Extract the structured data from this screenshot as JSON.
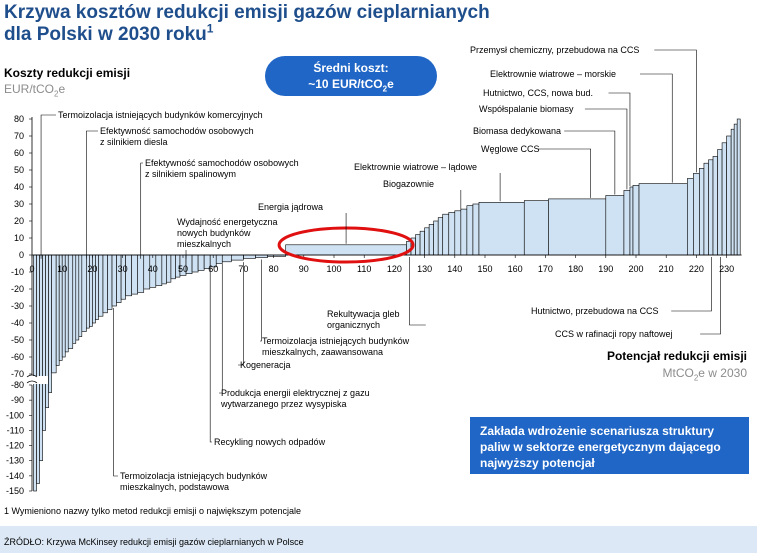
{
  "title_line1": "Krzywa kosztów redukcji emisji gazów cieplarnianych",
  "title_line2": "dla Polski w 2030 roku",
  "title_sup": "1",
  "y_axis_title": "Koszty redukcji emisji",
  "y_axis_unit_pre": "EUR/tCO",
  "y_axis_unit_sub": "2",
  "y_axis_unit_post": "e",
  "x_axis_title": "Potencjał redukcji emisji",
  "x_axis_unit_pre": "MtCO",
  "x_axis_unit_sub": "2",
  "x_axis_unit_post": "e w 2030",
  "avg_cost_line1": "Średni koszt:",
  "avg_cost_line2_pre": "~10 EUR/tCO",
  "avg_cost_line2_sub": "2",
  "avg_cost_line2_post": "e",
  "info_box": "Zakłada wdrożenie scenariusza struktury paliw w sektorze energetycznym dającego najwyższy potencjał",
  "footnote": "1 Wymieniono nazwy tylko metod redukcji emisji o największym potencjale",
  "source": "ŹRÓDŁO: Krzywa McKinsey redukcji emisji gazów cieplarnianych w Polsce",
  "colors": {
    "bar_fill": "#cfe2f3",
    "bar_stroke": "#000000",
    "title": "#1f4e8c",
    "box": "#1f66c6",
    "oval": "#e01010"
  },
  "chart_data": {
    "type": "bar",
    "variant": "marginal-abatement-cost-curve",
    "xlim": [
      0,
      235
    ],
    "ylim": [
      -150,
      80
    ],
    "axis_break": "between -70 and -80",
    "x_ticks": [
      0,
      10,
      20,
      30,
      40,
      50,
      60,
      70,
      80,
      90,
      100,
      110,
      120,
      130,
      140,
      150,
      160,
      170,
      180,
      190,
      200,
      210,
      220,
      230
    ],
    "y_ticks": [
      80,
      70,
      60,
      50,
      40,
      30,
      20,
      10,
      0,
      -10,
      -20,
      -30,
      -40,
      -50,
      -60,
      -70,
      -80,
      -90,
      -100,
      -110,
      -120,
      -130,
      -140,
      -150
    ],
    "bars": [
      {
        "x0": 0.5,
        "x1": 1.5,
        "y": -150
      },
      {
        "x0": 1.5,
        "x1": 2.5,
        "y": -145
      },
      {
        "x0": 2.5,
        "x1": 3.5,
        "y": -130
      },
      {
        "x0": 3.5,
        "x1": 4.5,
        "y": -110
      },
      {
        "x0": 4.5,
        "x1": 5.5,
        "y": -95
      },
      {
        "x0": 5.5,
        "x1": 6.5,
        "y": -85
      },
      {
        "x0": 6.5,
        "x1": 8,
        "y": -72
      },
      {
        "x0": 8,
        "x1": 9,
        "y": -65
      },
      {
        "x0": 9,
        "x1": 10,
        "y": -62
      },
      {
        "x0": 10,
        "x1": 11,
        "y": -60
      },
      {
        "x0": 11,
        "x1": 12,
        "y": -57
      },
      {
        "x0": 12,
        "x1": 13.5,
        "y": -55
      },
      {
        "x0": 13.5,
        "x1": 14.5,
        "y": -52
      },
      {
        "x0": 14.5,
        "x1": 15.5,
        "y": -50
      },
      {
        "x0": 15.5,
        "x1": 16.5,
        "y": -48
      },
      {
        "x0": 16.5,
        "x1": 18,
        "y": -45
      },
      {
        "x0": 18,
        "x1": 19,
        "y": -43
      },
      {
        "x0": 19,
        "x1": 20,
        "y": -42
      },
      {
        "x0": 20,
        "x1": 21,
        "y": -40
      },
      {
        "x0": 21,
        "x1": 22,
        "y": -38
      },
      {
        "x0": 22,
        "x1": 23.5,
        "y": -36
      },
      {
        "x0": 23.5,
        "x1": 25,
        "y": -34
      },
      {
        "x0": 25,
        "x1": 26.5,
        "y": -32
      },
      {
        "x0": 26.5,
        "x1": 28,
        "y": -30
      },
      {
        "x0": 28,
        "x1": 29.5,
        "y": -28
      },
      {
        "x0": 29.5,
        "x1": 31,
        "y": -26
      },
      {
        "x0": 31,
        "x1": 33,
        "y": -24
      },
      {
        "x0": 33,
        "x1": 35,
        "y": -23
      },
      {
        "x0": 35,
        "x1": 37,
        "y": -22
      },
      {
        "x0": 37,
        "x1": 39,
        "y": -20
      },
      {
        "x0": 39,
        "x1": 41,
        "y": -19
      },
      {
        "x0": 41,
        "x1": 43,
        "y": -18
      },
      {
        "x0": 43,
        "x1": 44.5,
        "y": -17
      },
      {
        "x0": 44.5,
        "x1": 46,
        "y": -16
      },
      {
        "x0": 46,
        "x1": 47.5,
        "y": -14
      },
      {
        "x0": 47.5,
        "x1": 49,
        "y": -13
      },
      {
        "x0": 49,
        "x1": 51,
        "y": -12
      },
      {
        "x0": 51,
        "x1": 53,
        "y": -11
      },
      {
        "x0": 53,
        "x1": 55,
        "y": -10
      },
      {
        "x0": 55,
        "x1": 57,
        "y": -9
      },
      {
        "x0": 57,
        "x1": 59,
        "y": -8
      },
      {
        "x0": 59,
        "x1": 61,
        "y": -7
      },
      {
        "x0": 61,
        "x1": 63,
        "y": -5
      },
      {
        "x0": 63,
        "x1": 66,
        "y": -4
      },
      {
        "x0": 66,
        "x1": 70,
        "y": -3
      },
      {
        "x0": 70,
        "x1": 74,
        "y": -2
      },
      {
        "x0": 74,
        "x1": 78,
        "y": -1.5
      },
      {
        "x0": 78,
        "x1": 84,
        "y": -0.8
      },
      {
        "x0": 84,
        "x1": 124,
        "y": 6
      },
      {
        "x0": 124,
        "x1": 125.5,
        "y": 8
      },
      {
        "x0": 125.5,
        "x1": 127,
        "y": 10
      },
      {
        "x0": 127,
        "x1": 128.5,
        "y": 12
      },
      {
        "x0": 128.5,
        "x1": 130,
        "y": 14
      },
      {
        "x0": 130,
        "x1": 131.5,
        "y": 16
      },
      {
        "x0": 131.5,
        "x1": 133,
        "y": 18
      },
      {
        "x0": 133,
        "x1": 134.5,
        "y": 20
      },
      {
        "x0": 134.5,
        "x1": 136,
        "y": 22
      },
      {
        "x0": 136,
        "x1": 138,
        "y": 24
      },
      {
        "x0": 138,
        "x1": 140,
        "y": 25
      },
      {
        "x0": 140,
        "x1": 142,
        "y": 26
      },
      {
        "x0": 142,
        "x1": 144,
        "y": 27
      },
      {
        "x0": 144,
        "x1": 146,
        "y": 29
      },
      {
        "x0": 146,
        "x1": 148,
        "y": 30
      },
      {
        "x0": 148,
        "x1": 163,
        "y": 31
      },
      {
        "x0": 163,
        "x1": 171,
        "y": 32
      },
      {
        "x0": 171,
        "x1": 190,
        "y": 33
      },
      {
        "x0": 190,
        "x1": 196,
        "y": 35
      },
      {
        "x0": 196,
        "x1": 198,
        "y": 38
      },
      {
        "x0": 198,
        "x1": 199,
        "y": 40
      },
      {
        "x0": 199,
        "x1": 201,
        "y": 41
      },
      {
        "x0": 201,
        "x1": 217,
        "y": 42
      },
      {
        "x0": 217,
        "x1": 219,
        "y": 45
      },
      {
        "x0": 219,
        "x1": 221,
        "y": 48
      },
      {
        "x0": 221,
        "x1": 222.5,
        "y": 51
      },
      {
        "x0": 222.5,
        "x1": 224,
        "y": 54
      },
      {
        "x0": 224,
        "x1": 225.5,
        "y": 56
      },
      {
        "x0": 225.5,
        "x1": 227,
        "y": 58
      },
      {
        "x0": 227,
        "x1": 228.5,
        "y": 62
      },
      {
        "x0": 228.5,
        "x1": 230,
        "y": 66
      },
      {
        "x0": 230,
        "x1": 231.5,
        "y": 70
      },
      {
        "x0": 231.5,
        "x1": 232.5,
        "y": 74
      },
      {
        "x0": 232.5,
        "x1": 233.5,
        "y": 77
      },
      {
        "x0": 233.5,
        "x1": 234.5,
        "y": 80
      }
    ],
    "annotations": [
      {
        "text": "Termoizolacja istniejących budynków komercyjnych",
        "x": 3,
        "y": -1
      },
      {
        "text": "Efektywność samochodów osobowych",
        "text2": "z silnikiem diesla",
        "x": 18,
        "y": -1
      },
      {
        "text": "Efektywność samochodów osobowych",
        "text2": "z silnikiem spalinowym",
        "x": 36,
        "y": -1
      },
      {
        "text": "Wydajność energetyczna",
        "text2": "nowych budynków",
        "text3": "mieszkalnych",
        "x": 51,
        "y": -1
      },
      {
        "text": "Energia jądrowa",
        "x": 104,
        "y": 6
      },
      {
        "text": "Elektrownie wiatrowe – lądowe",
        "x": 155,
        "y": 31
      },
      {
        "text": "Biogazownie",
        "x": 142,
        "y": 26
      },
      {
        "text": "Węglowe CCS",
        "x": 185,
        "y": 33
      },
      {
        "text": "Biomasa dedykowana",
        "x": 193,
        "y": 35
      },
      {
        "text": "Współspalanie biomasy",
        "x": 197,
        "y": 38
      },
      {
        "text": "Hutnictwo, CCS, nowa bud.",
        "x": 198,
        "y": 40
      },
      {
        "text": "Elektrownie wiatrowe – morskie",
        "x": 212,
        "y": 42
      },
      {
        "text": "Przemysł chemiczny, przebudowa na CCS",
        "x": 220,
        "y": 48
      },
      {
        "text": "Rekultywacja gleb",
        "text2": "organicznych",
        "x": 125,
        "y": 0
      },
      {
        "text": "Termoizolacja istniejących budynków",
        "text2": "mieszkalnych, zaawansowana",
        "x": 76,
        "y": -1.5
      },
      {
        "text": "Kogeneracja",
        "x": 70,
        "y": -3
      },
      {
        "text": "Produkcja energii elektrycznej z gazu",
        "text2": "wytwarzanego przez wysypiska",
        "x": 63,
        "y": -4
      },
      {
        "text": "Recykling nowych odpadów",
        "x": 59,
        "y": -7
      },
      {
        "text": "Termoizolacja istniejących budynków",
        "text2": "mieszkalnych, podstawowa",
        "x": 27,
        "y": -30
      },
      {
        "text": "Hutnictwo, przebudowa na CCS",
        "x": 225,
        "y": 0
      },
      {
        "text": "CCS w rafinacji ropy naftowej",
        "x": 228,
        "y": 0
      }
    ]
  }
}
